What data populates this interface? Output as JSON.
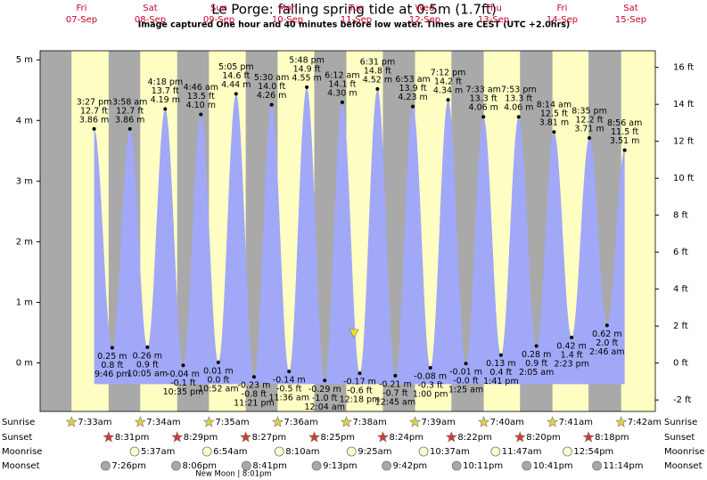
{
  "chart_data": {
    "type": "area",
    "title": "Le Porge: falling  spring tide at 0.5m (1.7ft)",
    "subtitle": "Image captured One hour and 40 minutes before low water. Times are CEST (UTC +2.0hrs)",
    "color": "#a1a8f7",
    "ylim": [
      -0.8,
      5.15
    ],
    "yticks": [
      {
        "value": 5,
        "label": "5 m"
      },
      {
        "value": 4,
        "label": "4 m"
      },
      {
        "value": 3,
        "label": "3 m"
      },
      {
        "value": 2,
        "label": "2 m"
      },
      {
        "value": 1,
        "label": "1 m"
      },
      {
        "value": 0,
        "label": "0 m"
      }
    ],
    "y2lim": [
      -2.62,
      16.9
    ],
    "y2ticks": [
      {
        "value": 16,
        "label": "16 ft"
      },
      {
        "value": 14,
        "label": "14 ft"
      },
      {
        "value": 12,
        "label": "12 ft"
      },
      {
        "value": 10,
        "label": "10 ft"
      },
      {
        "value": 8,
        "label": "8 ft"
      },
      {
        "value": 6,
        "label": "6 ft"
      },
      {
        "value": 4,
        "label": "4 ft"
      },
      {
        "value": 2,
        "label": "2 ft"
      },
      {
        "value": 0,
        "label": "0 ft"
      },
      {
        "value": -2,
        "label": "-2 ft"
      }
    ],
    "row_labels": {
      "sunrise": "Sunrise",
      "sunset": "Sunset",
      "moonrise": "Moonrise",
      "moonset": "Moonset"
    },
    "moon_phase": "New Moon | 8:01pm",
    "days": [
      {
        "weekday": "Fri",
        "date": "07-Sep",
        "sunrise": "7:33am",
        "sunset": "8:31pm",
        "moonset": "7:26pm",
        "tides": [
          {
            "time": "3:27 pm",
            "m": 3.86,
            "m_label": "3.86 m",
            "ft_label": "12.7 ft"
          },
          {
            "time": "9:46 pm",
            "m": 0.25,
            "m_label": "0.25 m",
            "ft_label": "0.8 ft"
          }
        ]
      },
      {
        "weekday": "Sat",
        "date": "08-Sep",
        "sunrise": "7:34am",
        "sunset": "8:29pm",
        "moonrise": "5:37am",
        "moonset": "8:06pm",
        "tides": [
          {
            "time": "3:58 am",
            "m": 3.86,
            "m_label": "3.86 m",
            "ft_label": "12.7 ft"
          },
          {
            "time": "10:05 am",
            "m": 0.26,
            "m_label": "0.26 m",
            "ft_label": "0.9 ft"
          },
          {
            "time": "4:18 pm",
            "m": 4.19,
            "m_label": "4.19 m",
            "ft_label": "13.7 ft"
          },
          {
            "time": "10:35 pm",
            "m": -0.04,
            "m_label": "-0.04 m",
            "ft_label": "-0.1 ft"
          }
        ]
      },
      {
        "weekday": "Sun",
        "date": "09-Sep",
        "sunrise": "7:35am",
        "sunset": "8:27pm",
        "moonrise": "6:54am",
        "moonset": "8:41pm",
        "tides": [
          {
            "time": "4:46 am",
            "m": 4.1,
            "m_label": "4.10 m",
            "ft_label": "13.5 ft"
          },
          {
            "time": "10:52 am",
            "m": 0.01,
            "m_label": "0.01 m",
            "ft_label": "0.0 ft"
          },
          {
            "time": "5:05 pm",
            "m": 4.44,
            "m_label": "4.44 m",
            "ft_label": "14.6 ft"
          },
          {
            "time": "11:21 pm",
            "m": -0.23,
            "m_label": "-0.23 m",
            "ft_label": "-0.8 ft"
          }
        ]
      },
      {
        "weekday": "Mon",
        "date": "10-Sep",
        "sunrise": "7:36am",
        "sunset": "8:25pm",
        "moonrise": "8:10am",
        "moonset": "9:13pm",
        "tides": [
          {
            "time": "5:30 am",
            "m": 4.26,
            "m_label": "4.26 m",
            "ft_label": "14.0 ft"
          },
          {
            "time": "11:36 am",
            "m": -0.14,
            "m_label": "-0.14 m",
            "ft_label": "-0.5 ft"
          },
          {
            "time": "5:48 pm",
            "m": 4.55,
            "m_label": "4.55 m",
            "ft_label": "14.9 ft"
          }
        ]
      },
      {
        "weekday": "Tue",
        "date": "11-Sep",
        "sunrise": "7:38am",
        "sunset": "8:24pm",
        "moonrise": "9:25am",
        "moonset": "9:42pm",
        "tides": [
          {
            "time": "12:04 am",
            "m": -0.29,
            "m_label": "-0.29 m",
            "ft_label": "-1.0 ft"
          },
          {
            "time": "6:12 am",
            "m": 4.3,
            "m_label": "4.30 m",
            "ft_label": "14.1 ft"
          },
          {
            "time": "12:18 pm",
            "m": -0.17,
            "m_label": "-0.17 m",
            "ft_label": "-0.6 ft"
          },
          {
            "time": "6:31 pm",
            "m": 4.52,
            "m_label": "4.52 m",
            "ft_label": "14.8 ft"
          }
        ]
      },
      {
        "weekday": "Wed",
        "date": "12-Sep",
        "sunrise": "7:39am",
        "sunset": "8:22pm",
        "moonrise": "10:37am",
        "moonset": "10:11pm",
        "tides": [
          {
            "time": "12:45 am",
            "m": -0.21,
            "m_label": "-0.21 m",
            "ft_label": "-0.7 ft"
          },
          {
            "time": "6:53 am",
            "m": 4.23,
            "m_label": "4.23 m",
            "ft_label": "13.9 ft"
          },
          {
            "time": "1:00 pm",
            "m": -0.08,
            "m_label": "-0.08 m",
            "ft_label": "-0.3 ft"
          },
          {
            "time": "7:12 pm",
            "m": 4.34,
            "m_label": "4.34 m",
            "ft_label": "14.2 ft"
          }
        ]
      },
      {
        "weekday": "Thu",
        "date": "13-Sep",
        "sunrise": "7:40am",
        "sunset": "8:20pm",
        "moonrise": "11:47am",
        "moonset": "10:41pm",
        "tides": [
          {
            "time": "1:25 am",
            "m": -0.01,
            "m_label": "-0.01 m",
            "ft_label": "-0.0 ft"
          },
          {
            "time": "7:33 am",
            "m": 4.06,
            "m_label": "4.06 m",
            "ft_label": "13.3 ft"
          },
          {
            "time": "1:41 pm",
            "m": 0.13,
            "m_label": "0.13 m",
            "ft_label": "0.4 ft"
          },
          {
            "time": "7:53 pm",
            "m": 4.06,
            "m_label": "4.06 m",
            "ft_label": "13.3 ft"
          }
        ]
      },
      {
        "weekday": "Fri",
        "date": "14-Sep",
        "sunrise": "7:41am",
        "sunset": "8:18pm",
        "moonrise": "12:54pm",
        "moonset": "11:14pm",
        "tides": [
          {
            "time": "2:05 am",
            "m": 0.28,
            "m_label": "0.28 m",
            "ft_label": "0.9 ft"
          },
          {
            "time": "8:14 am",
            "m": 3.81,
            "m_label": "3.81 m",
            "ft_label": "12.5 ft"
          },
          {
            "time": "2:23 pm",
            "m": 0.42,
            "m_label": "0.42 m",
            "ft_label": "1.4 ft"
          },
          {
            "time": "8:35 pm",
            "m": 3.71,
            "m_label": "3.71 m",
            "ft_label": "12.2 ft"
          }
        ]
      },
      {
        "weekday": "Sat",
        "date": "15-Sep",
        "sunrise": "7:42am",
        "tides": [
          {
            "time": "2:46 am",
            "m": 0.62,
            "m_label": "0.62 m",
            "ft_label": "2.0 ft"
          },
          {
            "time": "8:56 am",
            "m": 3.51,
            "m_label": "3.51 m",
            "ft_label": "11.5 ft"
          }
        ]
      }
    ]
  }
}
